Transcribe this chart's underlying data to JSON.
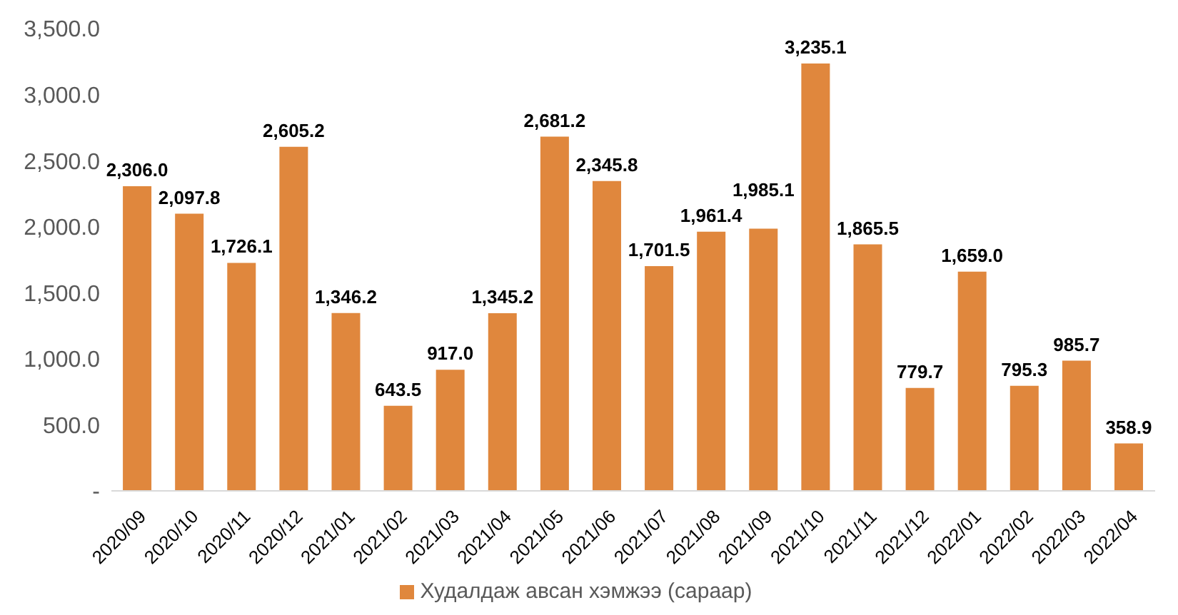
{
  "chart_data": {
    "type": "bar",
    "categories": [
      "2020/09",
      "2020/10",
      "2020/11",
      "2020/12",
      "2021/01",
      "2021/02",
      "2021/03",
      "2021/04",
      "2021/05",
      "2021/06",
      "2021/07",
      "2021/08",
      "2021/09",
      "2021/10",
      "2021/11",
      "2021/12",
      "2022/01",
      "2022/02",
      "2022/03",
      "2022/04"
    ],
    "series": [
      {
        "name": "Худалдаж авсан хэмжээ (сараар)",
        "color": "#e0873d",
        "values": [
          2306.0,
          2097.8,
          1726.1,
          2605.2,
          1346.2,
          643.5,
          917.0,
          1345.2,
          2681.2,
          2345.8,
          1701.5,
          1961.4,
          1985.1,
          3235.1,
          1865.5,
          779.7,
          1659.0,
          795.3,
          985.7,
          358.9
        ],
        "value_labels": [
          "2,306.0",
          "2,097.8",
          "1,726.1",
          "2,605.2",
          "1,346.2",
          "643.5",
          "917.0",
          "1,345.2",
          "2,681.2",
          "2,345.8",
          "1,701.5",
          "1,961.4",
          "1,985.1",
          "3,235.1",
          "1,865.5",
          "779.7",
          "1,659.0",
          "795.3",
          "985.7",
          "358.9"
        ]
      }
    ],
    "ylim": [
      0,
      3500
    ],
    "yticks": [
      {
        "value": 0,
        "label": "-"
      },
      {
        "value": 500,
        "label": "500.0"
      },
      {
        "value": 1000,
        "label": "1,000.0"
      },
      {
        "value": 1500,
        "label": "1,500.0"
      },
      {
        "value": 2000,
        "label": "2,000.0"
      },
      {
        "value": 2500,
        "label": "2,500.0"
      },
      {
        "value": 3000,
        "label": "3,000.0"
      },
      {
        "value": 3500,
        "label": "3,500.0"
      }
    ],
    "grid": false,
    "legend": "bottom"
  }
}
